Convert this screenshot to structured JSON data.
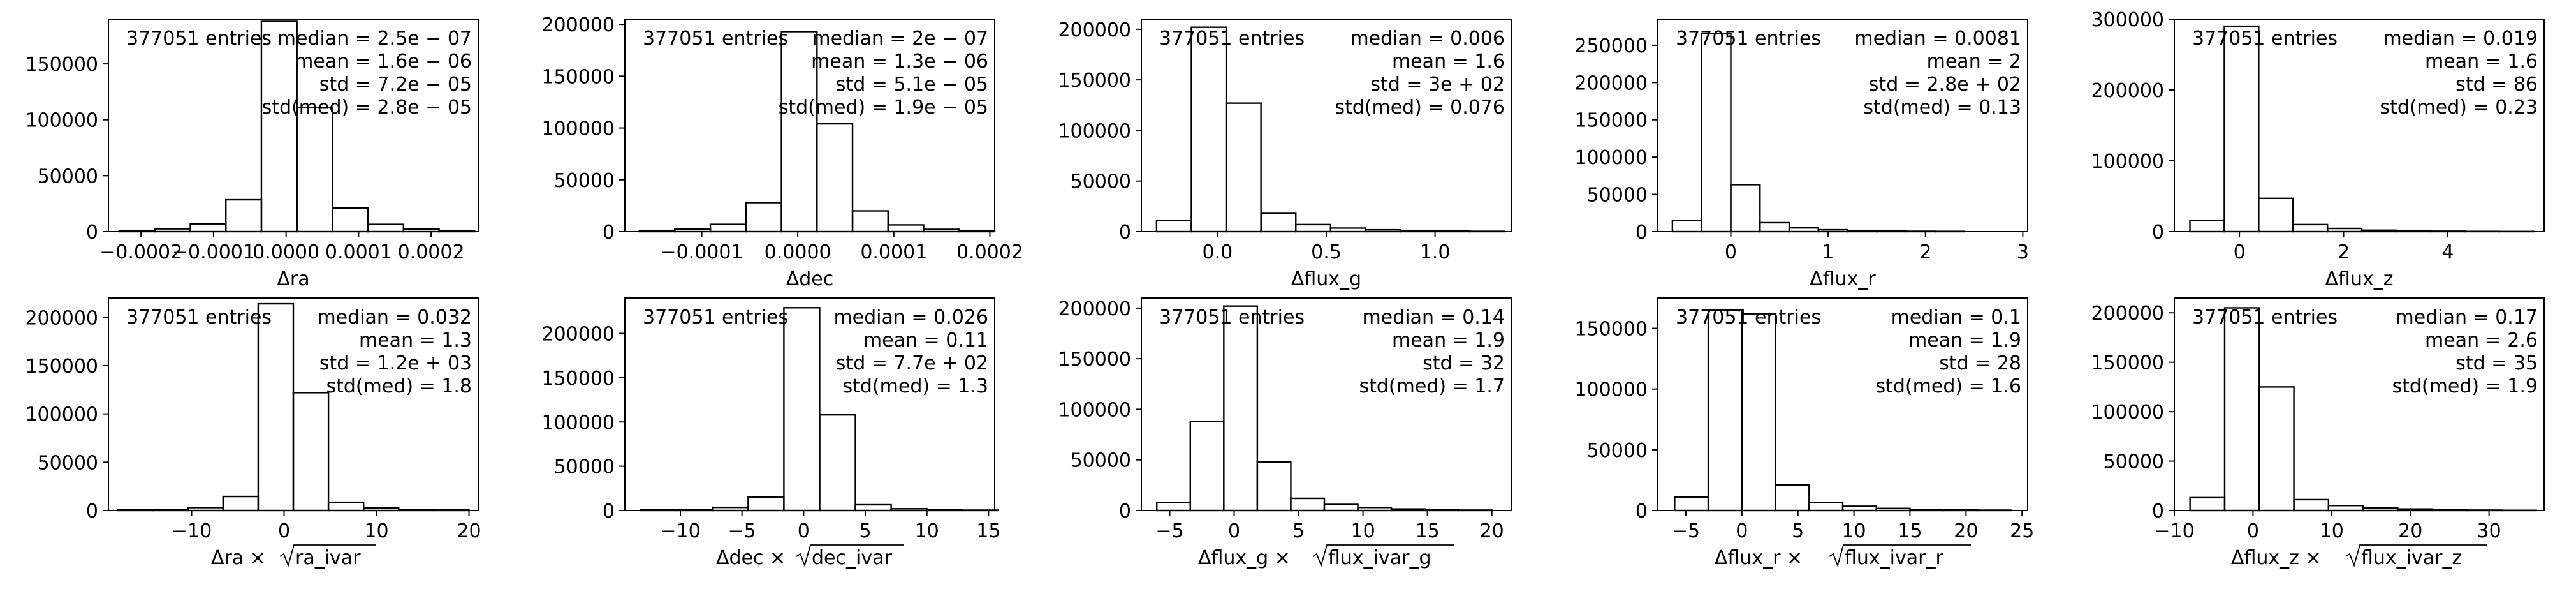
{
  "chart_data": [
    {
      "type": "histogram",
      "xlabel_main": "Δra",
      "xlabel_sqrt": "",
      "xlim": [
        -0.000245,
        0.000265
      ],
      "ylim": [
        0,
        190000
      ],
      "xticks": [
        -0.0002,
        -0.0001,
        0.0,
        0.0001,
        0.0002
      ],
      "xtick_labels": [
        "−0.0002",
        "−0.0001",
        "0.0000",
        "0.0001",
        "0.0002"
      ],
      "yticks": [
        0,
        50000,
        100000,
        150000
      ],
      "ytick_labels": [
        "0",
        "50000",
        "100000",
        "150000"
      ],
      "edges": [
        -0.00023,
        -0.000181,
        -0.000132,
        -8.3e-05,
        -3.4e-05,
        1.5e-05,
        6.4e-05,
        0.000113,
        0.000162,
        0.000211,
        0.00026
      ],
      "counts": [
        1000,
        2500,
        7000,
        28500,
        188000,
        111000,
        21000,
        6500,
        2200,
        600
      ],
      "annotation_left": "377051 entries",
      "annotation_right": [
        "median = 2.5e − 07",
        "mean = 1.6e − 06",
        "std = 7.2e − 05",
        "std(med) = 2.8e − 05"
      ]
    },
    {
      "type": "histogram",
      "xlabel_main": "Δdec",
      "xlabel_sqrt": "",
      "xlim": [
        -0.00018,
        0.000205
      ],
      "ylim": [
        0,
        205000
      ],
      "xticks": [
        -0.0001,
        0.0,
        0.0001,
        0.0002
      ],
      "xtick_labels": [
        "−0.0001",
        "0.0000",
        "0.0001",
        "0.0002"
      ],
      "yticks": [
        0,
        50000,
        100000,
        150000,
        200000
      ],
      "ytick_labels": [
        "0",
        "50000",
        "100000",
        "150000",
        "200000"
      ],
      "edges": [
        -0.000165,
        -0.000128,
        -9.1e-05,
        -5.4e-05,
        -1.7e-05,
        2e-05,
        5.7e-05,
        9.4e-05,
        0.000131,
        0.000168,
        0.000205
      ],
      "counts": [
        1000,
        2500,
        7000,
        28000,
        193000,
        104000,
        20000,
        6500,
        2200,
        600
      ],
      "annotation_left": "377051 entries",
      "annotation_right": [
        "median = 2e − 07",
        "mean = 1.3e − 06",
        "std = 5.1e − 05",
        "std(med) = 1.9e − 05"
      ]
    },
    {
      "type": "histogram",
      "xlabel_main": "Δflux_g",
      "xlabel_sqrt": "",
      "xlim": [
        -0.35,
        1.35
      ],
      "ylim": [
        0,
        210000
      ],
      "xticks": [
        0.0,
        0.5,
        1.0
      ],
      "xtick_labels": [
        "0.0",
        "0.5",
        "1.0"
      ],
      "yticks": [
        0,
        50000,
        100000,
        150000,
        200000
      ],
      "ytick_labels": [
        "0",
        "50000",
        "100000",
        "150000",
        "200000"
      ],
      "edges": [
        -0.28,
        -0.12,
        0.04,
        0.2,
        0.36,
        0.52,
        0.68,
        0.84,
        1.0,
        1.16,
        1.32
      ],
      "counts": [
        11000,
        202000,
        127000,
        18000,
        7000,
        3500,
        1800,
        900,
        500,
        300
      ],
      "annotation_left": "377051 entries",
      "annotation_right": [
        "median = 0.006",
        "mean = 1.6",
        "std = 3e + 02",
        "std(med) = 0.076"
      ]
    },
    {
      "type": "histogram",
      "xlabel_main": "Δflux_r",
      "xlabel_sqrt": "",
      "xlim": [
        -0.75,
        3.05
      ],
      "ylim": [
        0,
        285000
      ],
      "xticks": [
        0,
        1,
        2,
        3
      ],
      "xtick_labels": [
        "0",
        "1",
        "2",
        "3"
      ],
      "yticks": [
        0,
        50000,
        100000,
        150000,
        200000,
        250000
      ],
      "ytick_labels": [
        "0",
        "50000",
        "100000",
        "150000",
        "200000",
        "250000"
      ],
      "edges": [
        -0.6,
        -0.3,
        0.0,
        0.3,
        0.6,
        0.9,
        1.2,
        1.5,
        1.8,
        2.1,
        2.4
      ],
      "counts": [
        15000,
        266000,
        63000,
        12000,
        5000,
        2500,
        1500,
        800,
        500,
        300
      ],
      "annotation_left": "377051 entries",
      "annotation_right": [
        "median = 0.0081",
        "mean = 2",
        "std = 2.8e + 02",
        "std(med) = 0.13"
      ]
    },
    {
      "type": "histogram",
      "xlabel_main": "Δflux_z",
      "xlabel_sqrt": "",
      "xlim": [
        -1.25,
        5.85
      ],
      "ylim": [
        0,
        300000
      ],
      "xticks": [
        0,
        2,
        4
      ],
      "xtick_labels": [
        "0",
        "2",
        "4"
      ],
      "yticks": [
        0,
        100000,
        200000,
        300000
      ],
      "ytick_labels": [
        "0",
        "100000",
        "200000",
        "300000"
      ],
      "edges": [
        -0.95,
        -0.29,
        0.37,
        1.03,
        1.69,
        2.35,
        3.01,
        3.67,
        4.33,
        4.99,
        5.65
      ],
      "counts": [
        16000,
        290000,
        47000,
        10000,
        4500,
        2000,
        1000,
        600,
        300,
        200
      ],
      "annotation_left": "377051 entries",
      "annotation_right": [
        "median = 0.019",
        "mean = 1.6",
        "std = 86",
        "std(med) = 0.23"
      ]
    },
    {
      "type": "histogram",
      "xlabel_main": "Δra × ",
      "xlabel_sqrt": "ra_ivar",
      "xlim": [
        -19,
        21
      ],
      "ylim": [
        0,
        220000
      ],
      "xticks": [
        -10,
        0,
        10,
        20
      ],
      "xtick_labels": [
        "−10",
        "0",
        "10",
        "20"
      ],
      "yticks": [
        0,
        50000,
        100000,
        150000,
        200000
      ],
      "ytick_labels": [
        "0",
        "50000",
        "100000",
        "150000",
        "200000"
      ],
      "edges": [
        -18,
        -14.2,
        -10.4,
        -6.6,
        -2.8,
        1.0,
        4.8,
        8.6,
        12.4,
        16.2,
        20.0
      ],
      "counts": [
        800,
        1000,
        3000,
        14500,
        214000,
        122000,
        8500,
        2500,
        1000,
        500
      ],
      "annotation_left": "377051 entries",
      "annotation_right": [
        "median = 0.032",
        "mean = 1.3",
        "std = 1.2e + 03",
        "std(med) = 1.8"
      ]
    },
    {
      "type": "histogram",
      "xlabel_main": "Δdec × ",
      "xlabel_sqrt": "dec_ivar",
      "xlim": [
        -14.5,
        15.5
      ],
      "ylim": [
        0,
        240000
      ],
      "xticks": [
        -10,
        -5,
        0,
        5,
        10,
        15
      ],
      "xtick_labels": [
        "−10",
        "−5",
        "0",
        "5",
        "10",
        "15"
      ],
      "yticks": [
        0,
        50000,
        100000,
        150000,
        200000
      ],
      "ytick_labels": [
        "0",
        "50000",
        "100000",
        "150000",
        "200000"
      ],
      "edges": [
        -13.2,
        -10.3,
        -7.4,
        -4.5,
        -1.6,
        1.3,
        4.2,
        7.1,
        10.0,
        12.9,
        15.8
      ],
      "counts": [
        800,
        1200,
        3500,
        15000,
        229000,
        108000,
        6500,
        2000,
        800,
        400
      ],
      "annotation_left": "377051 entries",
      "annotation_right": [
        "median = 0.026",
        "mean = 0.11",
        "std = 7.7e + 02",
        "std(med) = 1.3"
      ]
    },
    {
      "type": "histogram",
      "xlabel_main": "Δflux_g × ",
      "xlabel_sqrt": "flux_ivar_g",
      "xlim": [
        -7.2,
        21.5
      ],
      "ylim": [
        0,
        210000
      ],
      "xticks": [
        -5,
        0,
        5,
        10,
        15,
        20
      ],
      "xtick_labels": [
        "−5",
        "0",
        "5",
        "10",
        "15",
        "20"
      ],
      "yticks": [
        0,
        50000,
        100000,
        150000,
        200000
      ],
      "ytick_labels": [
        "0",
        "50000",
        "100000",
        "150000",
        "200000"
      ],
      "edges": [
        -6.0,
        -3.4,
        -0.8,
        1.8,
        4.4,
        7.0,
        9.6,
        12.2,
        14.8,
        17.4,
        20.0
      ],
      "counts": [
        8000,
        88000,
        202000,
        48000,
        12000,
        6000,
        3000,
        1500,
        800,
        400
      ],
      "annotation_left": "377051 entries",
      "annotation_right": [
        "median = 0.14",
        "mean = 1.9",
        "std = 32",
        "std(med) = 1.7"
      ]
    },
    {
      "type": "histogram",
      "xlabel_main": "Δflux_r × ",
      "xlabel_sqrt": "flux_ivar_r",
      "xlim": [
        -7.5,
        25.5
      ],
      "ylim": [
        0,
        175000
      ],
      "xticks": [
        -5,
        0,
        5,
        10,
        15,
        20,
        25
      ],
      "xtick_labels": [
        "−5",
        "0",
        "5",
        "10",
        "15",
        "20",
        "25"
      ],
      "yticks": [
        0,
        50000,
        100000,
        150000
      ],
      "ytick_labels": [
        "0",
        "50000",
        "100000",
        "150000"
      ],
      "edges": [
        -6.0,
        -3.0,
        0.0,
        3.0,
        6.0,
        9.0,
        12.0,
        15.0,
        18.0,
        21.0,
        24.0
      ],
      "counts": [
        11000,
        165000,
        162000,
        21000,
        6500,
        3500,
        1700,
        900,
        500,
        300
      ],
      "annotation_left": "377051 entries",
      "annotation_right": [
        "median = 0.1",
        "mean = 1.9",
        "std = 28",
        "std(med) = 1.6"
      ]
    },
    {
      "type": "histogram",
      "xlabel_main": "Δflux_z × ",
      "xlabel_sqrt": "flux_ivar_z",
      "xlim": [
        -10,
        37
      ],
      "ylim": [
        0,
        215000
      ],
      "xticks": [
        -10,
        0,
        10,
        20,
        30
      ],
      "xtick_labels": [
        "−10",
        "0",
        "10",
        "20",
        "30"
      ],
      "yticks": [
        0,
        50000,
        100000,
        150000,
        200000
      ],
      "ytick_labels": [
        "0",
        "50000",
        "100000",
        "150000",
        "200000"
      ],
      "edges": [
        -8.0,
        -3.6,
        0.8,
        5.2,
        9.6,
        14.0,
        18.4,
        22.8,
        27.2,
        31.6,
        36.0
      ],
      "counts": [
        13000,
        205000,
        125000,
        11000,
        5000,
        2500,
        1500,
        800,
        400,
        200
      ],
      "annotation_left": "377051 entries",
      "annotation_right": [
        "median = 0.17",
        "mean = 2.6",
        "std = 35",
        "std(med) = 1.9"
      ]
    }
  ]
}
